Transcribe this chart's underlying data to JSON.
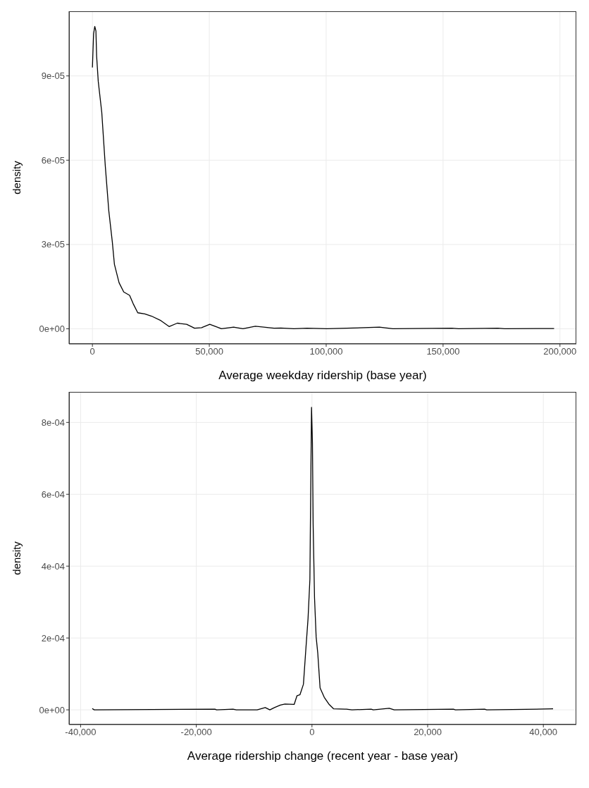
{
  "chart_data": [
    {
      "type": "line",
      "xlabel": "Average weekday ridership (base year)",
      "ylabel": "density",
      "grid": true,
      "marker": "none",
      "line_style": "solid",
      "xlim": [
        -10000,
        207000
      ],
      "ylim": [
        -5.4e-06,
        0.000113
      ],
      "xticks": [
        {
          "value": 0,
          "label": "0"
        },
        {
          "value": 50000,
          "label": "50,000"
        },
        {
          "value": 100000,
          "label": "100,000"
        },
        {
          "value": 150000,
          "label": "150,000"
        },
        {
          "value": 200000,
          "label": "200,000"
        }
      ],
      "yticks": [
        {
          "value": 0,
          "label": "0e+00"
        },
        {
          "value": 3e-05,
          "label": "3e-05"
        },
        {
          "value": 6e-05,
          "label": "6e-05"
        },
        {
          "value": 9e-05,
          "label": "9e-05"
        }
      ],
      "series": [
        {
          "color": "#000000",
          "x": [
            0,
            200,
            500,
            1000,
            1500,
            1800,
            2500,
            4000,
            5500,
            7000,
            8500,
            9400,
            11400,
            13400,
            15900,
            17400,
            19400,
            22400,
            25300,
            29300,
            32800,
            36300,
            40300,
            43700,
            46700,
            50200,
            55200,
            60400,
            64400,
            69700,
            77700,
            80600,
            86200,
            91800,
            100300,
            108700,
            122800,
            128500,
            153800,
            156600,
            173500,
            176300,
            197500
          ],
          "values": [
            9.3e-05,
            9.8e-05,
            0.000105,
            0.0001076,
            0.000106,
            9.7e-05,
            8.8e-05,
            7.7e-05,
            5.8e-05,
            4.2e-05,
            3.1e-05,
            2.3e-05,
            1.64e-05,
            1.31e-05,
            1.19e-05,
            9e-06,
            5.7e-06,
            5.3e-06,
            4.5e-06,
            2.9e-06,
            8e-07,
            2e-06,
            1.6e-06,
            2e-07,
            4e-07,
            1.6e-06,
            0,
            6e-07,
            0,
            9e-07,
            2e-07,
            3e-07,
            0,
            2e-07,
            0,
            2e-07,
            6e-07,
            0,
            2e-07,
            0,
            2e-07,
            0,
            1e-07
          ]
        }
      ]
    },
    {
      "type": "line",
      "xlabel": "Average ridership change (recent year - base year)",
      "ylabel": "density",
      "grid": true,
      "marker": "none",
      "line_style": "solid",
      "xlim": [
        -42000,
        45700
      ],
      "ylim": [
        -4.1e-05,
        0.000885
      ],
      "xticks": [
        {
          "value": -40000,
          "label": "-40,000"
        },
        {
          "value": -20000,
          "label": "-20,000"
        },
        {
          "value": 0,
          "label": "0"
        },
        {
          "value": 20000,
          "label": "20,000"
        },
        {
          "value": 40000,
          "label": "40,000"
        }
      ],
      "yticks": [
        {
          "value": 0,
          "label": "0e+00"
        },
        {
          "value": 0.0002,
          "label": "2e-04"
        },
        {
          "value": 0.0004,
          "label": "4e-04"
        },
        {
          "value": 0.0006,
          "label": "6e-04"
        },
        {
          "value": 0.0008,
          "label": "8e-04"
        }
      ],
      "series": [
        {
          "color": "#000000",
          "x": [
            -37990,
            -37640,
            -16770,
            -16500,
            -13650,
            -13080,
            -9480,
            -8080,
            -7280,
            -6480,
            -5480,
            -4680,
            -3080,
            -2600,
            -2080,
            -1480,
            -1080,
            -680,
            -360,
            -240,
            -80,
            80,
            200,
            440,
            720,
            1000,
            1400,
            2120,
            2920,
            3720,
            5720,
            5970,
            6920,
            10230,
            10600,
            13360,
            14220,
            24450,
            24800,
            29850,
            30200,
            41680
          ],
          "values": [
            3.6e-06,
            0,
            2e-06,
            0,
            2e-06,
            0,
            0,
            6.4e-06,
            0,
            6.4e-06,
            1.3e-05,
            1.6e-05,
            1.5e-05,
            3.9e-05,
            4.2e-05,
            7.1e-05,
            0.000164,
            0.000254,
            0.000363,
            0.000575,
            0.000842,
            0.000743,
            0.000518,
            0.000312,
            0.000203,
            0.000158,
            6.1e-05,
            3.5e-05,
            1.6e-05,
            3e-06,
            2e-06,
            2e-06,
            0,
            2e-06,
            0,
            4.5e-06,
            0,
            2e-06,
            0,
            2e-06,
            0,
            2.7e-06
          ]
        }
      ]
    }
  ]
}
